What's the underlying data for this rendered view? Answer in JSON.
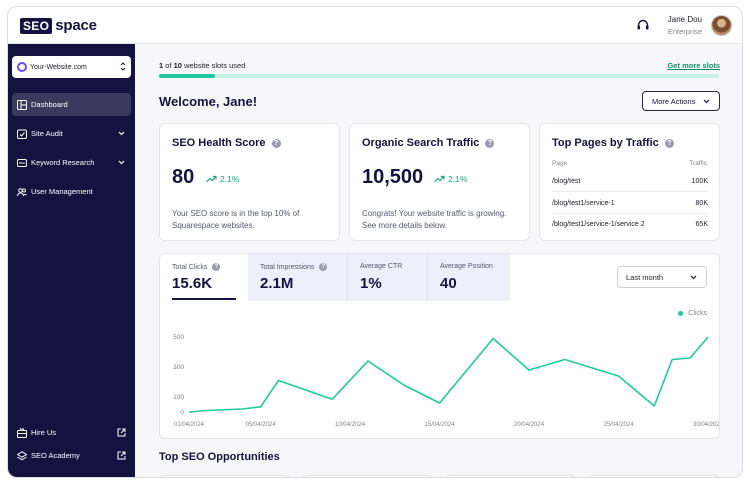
{
  "header": {
    "logo_box": "SEO",
    "logo_text": "space",
    "support_icon": "headset-icon",
    "user_name": "Jane Dou",
    "user_plan": "Enterprise"
  },
  "sidebar": {
    "website": "Your-Website.com",
    "items": [
      {
        "label": "Dashboard",
        "icon": "dashboard-icon"
      },
      {
        "label": "Site Audit",
        "icon": "audit-icon"
      },
      {
        "label": "Keyword Research",
        "icon": "keyword-icon"
      },
      {
        "label": "User Management",
        "icon": "users-icon"
      }
    ],
    "footer": [
      {
        "label": "Hire Us",
        "icon": "briefcase-icon"
      },
      {
        "label": "SEO Academy",
        "icon": "academy-icon"
      }
    ]
  },
  "slots": {
    "used": "1",
    "of": "of",
    "total": "10",
    "suffix": "website slots used",
    "link": "Get more slots",
    "fraction": 0.1
  },
  "welcome": "Welcome, Jane!",
  "more_actions": "More Actions",
  "health": {
    "title": "SEO Health Score",
    "value": "80",
    "delta": "2.1%",
    "desc": "Your SEO score is in the top 10% of Squarespace websites."
  },
  "traffic": {
    "title": "Organic Search Traffic",
    "value": "10,500",
    "delta": "2.1%",
    "desc": "Congrats! Your website traffic is growing. See more details below."
  },
  "top_pages": {
    "title": "Top Pages by Traffic",
    "col_page": "Page",
    "col_traffic": "Traffic",
    "rows": [
      {
        "page": "/blog/test",
        "traffic": "100K"
      },
      {
        "page": "/blog/test1/service-1",
        "traffic": "80K"
      },
      {
        "page": "/blog/test1/service-1/service 2",
        "traffic": "65K"
      }
    ]
  },
  "metrics": [
    {
      "label": "Total Clicks",
      "value": "15.6K"
    },
    {
      "label": "Total Impressions",
      "value": "2.1M"
    },
    {
      "label": "Average CTR",
      "value": "1%"
    },
    {
      "label": "Average Position",
      "value": "40"
    }
  ],
  "period": "Last month",
  "chart_data": {
    "type": "line",
    "series": [
      {
        "name": "Clicks",
        "color": "#21c99e",
        "values": [
          0,
          10,
          20,
          35,
          210,
          85,
          340,
          180,
          60,
          490,
          280,
          350,
          240,
          40,
          350,
          360,
          500
        ]
      }
    ],
    "x": [
      "01/04/2024",
      "02/04/2024",
      "04/04/2024",
      "05/04/2024",
      "06/04/2024",
      "09/04/2024",
      "11/04/2024",
      "13/04/2024",
      "15/04/2024",
      "18/04/2024",
      "20/04/2024",
      "22/04/2024",
      "25/04/2024",
      "27/04/2024",
      "28/04/2024",
      "29/04/2024",
      "30/04/2024"
    ],
    "x_tick_labels": [
      "01/04/2024",
      "05/04/2024",
      "10/04/2024",
      "15/04/2024",
      "20/04/2024",
      "25/04/2024",
      "30/04/2024"
    ],
    "y_ticks": [
      "500",
      "300",
      "100",
      "0"
    ],
    "ylim": [
      0,
      500
    ]
  },
  "opportunities_title": "Top SEO Opportunities"
}
